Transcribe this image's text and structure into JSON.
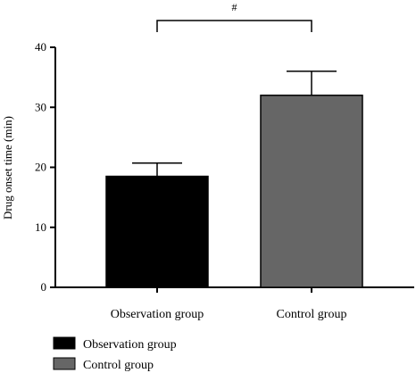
{
  "chart_data": {
    "type": "bar",
    "categories": [
      "Observation group",
      "Control group"
    ],
    "values": [
      18.5,
      32.0
    ],
    "errors": [
      2.2,
      4.0
    ],
    "colors": [
      "#000000",
      "#666666"
    ],
    "ylabel": "Drug onset time (min)",
    "xlabel": "",
    "ylim": [
      0,
      40
    ],
    "yticks": [
      0,
      10,
      20,
      30,
      40
    ],
    "grid": false,
    "legend": {
      "placement": "bottom-left",
      "entries": [
        {
          "label": "Observation group",
          "color": "#000000"
        },
        {
          "label": "Control group",
          "color": "#666666"
        }
      ]
    },
    "annotation": {
      "text": "#",
      "between": [
        "Observation group",
        "Control group"
      ]
    }
  }
}
